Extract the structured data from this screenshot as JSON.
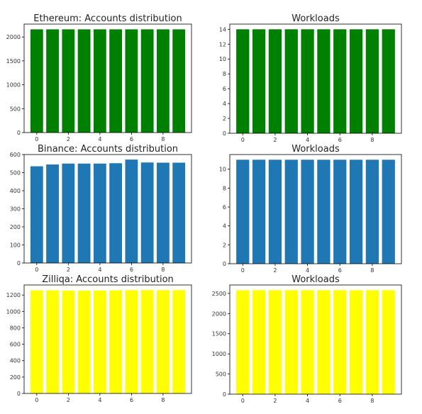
{
  "chart_data": [
    {
      "type": "bar",
      "title": "Ethereum: Accounts distribution",
      "color": "#008000",
      "x": [
        0,
        1,
        2,
        3,
        4,
        5,
        6,
        7,
        8,
        9
      ],
      "values": [
        2160,
        2160,
        2160,
        2160,
        2160,
        2160,
        2160,
        2160,
        2160,
        2160
      ],
      "xticks": [
        0,
        2,
        4,
        6,
        8
      ],
      "yticks": [
        0,
        500,
        1000,
        1500,
        2000
      ],
      "ylim": [
        0,
        2270
      ],
      "xlabel": "",
      "ylabel": ""
    },
    {
      "type": "bar",
      "title": "Workloads",
      "color": "#008000",
      "x": [
        0,
        1,
        2,
        3,
        4,
        5,
        6,
        7,
        8,
        9
      ],
      "values": [
        14,
        14,
        14,
        14,
        14,
        14,
        14,
        14,
        14,
        14
      ],
      "xticks": [
        0,
        2,
        4,
        6,
        8
      ],
      "yticks": [
        0,
        2,
        4,
        6,
        8,
        10,
        12,
        14
      ],
      "ylim": [
        0,
        14.7
      ],
      "xlabel": "",
      "ylabel": ""
    },
    {
      "type": "bar",
      "title": "Binance: Accounts distribution",
      "color": "#1f77b4",
      "x": [
        0,
        1,
        2,
        3,
        4,
        5,
        6,
        7,
        8,
        9
      ],
      "values": [
        535,
        545,
        550,
        550,
        550,
        552,
        572,
        556,
        555,
        555
      ],
      "xticks": [
        0,
        2,
        4,
        6,
        8
      ],
      "yticks": [
        0,
        100,
        200,
        300,
        400,
        500,
        600
      ],
      "ylim": [
        0,
        600
      ],
      "xlabel": "",
      "ylabel": ""
    },
    {
      "type": "bar",
      "title": "Workloads",
      "color": "#1f77b4",
      "x": [
        0,
        1,
        2,
        3,
        4,
        5,
        6,
        7,
        8,
        9
      ],
      "values": [
        11,
        11,
        11,
        11,
        11,
        11,
        11,
        11,
        11,
        11
      ],
      "xticks": [
        0,
        2,
        4,
        6,
        8
      ],
      "yticks": [
        0,
        2,
        4,
        6,
        8,
        10
      ],
      "ylim": [
        0,
        11.55
      ],
      "xlabel": "",
      "ylabel": ""
    },
    {
      "type": "bar",
      "title": "Zilliqa: Accounts distribution",
      "color": "#ffff00",
      "x": [
        0,
        1,
        2,
        3,
        4,
        5,
        6,
        7,
        8,
        9
      ],
      "values": [
        1258,
        1258,
        1255,
        1255,
        1255,
        1258,
        1260,
        1260,
        1260,
        1260
      ],
      "xticks": [
        0,
        2,
        4,
        6,
        8
      ],
      "yticks": [
        0,
        200,
        400,
        600,
        800,
        1000,
        1200
      ],
      "ylim": [
        0,
        1323
      ],
      "xlabel": "",
      "ylabel": ""
    },
    {
      "type": "bar",
      "title": "Workloads",
      "color": "#ffff00",
      "x": [
        0,
        1,
        2,
        3,
        4,
        5,
        6,
        7,
        8,
        9
      ],
      "values": [
        2580,
        2580,
        2580,
        2580,
        2580,
        2580,
        2580,
        2580,
        2580,
        2580
      ],
      "xticks": [
        0,
        2,
        4,
        6,
        8
      ],
      "yticks": [
        0,
        500,
        1000,
        1500,
        2000,
        2500
      ],
      "ylim": [
        0,
        2709
      ],
      "xlabel": "",
      "ylabel": ""
    }
  ]
}
